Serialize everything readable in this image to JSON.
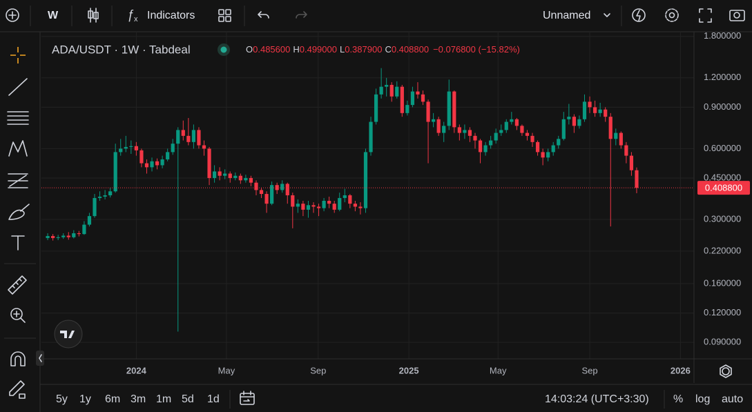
{
  "toolbar": {
    "interval": "W",
    "indicators": "Indicators",
    "layout_name": "Unnamed"
  },
  "legend": {
    "symbol": "ADA/USDT · 1W · Tabdeal",
    "items": [
      {
        "key": "O",
        "value": "0.485600"
      },
      {
        "key": "H",
        "value": "0.499000"
      },
      {
        "key": "L",
        "value": "0.387900"
      },
      {
        "key": "C",
        "value": "0.408800"
      }
    ],
    "change": "−0.076800 (−15.82%)"
  },
  "bottom_bar": {
    "ranges": [
      "5y",
      "1y",
      "6m",
      "3m",
      "1m",
      "5d",
      "1d"
    ],
    "clock": "14:03:24 (UTC+3:30)",
    "percent": "%",
    "log": "log",
    "auto": "auto"
  },
  "chart_data": {
    "type": "candlestick",
    "log_scale": true,
    "grid": true,
    "up_color": "#089981",
    "down_color": "#f23645",
    "last_price_label": "0.408800",
    "xlim": [
      -1.2,
      124
    ],
    "xticks": [
      {
        "value": 17,
        "label": "2024"
      },
      {
        "value": 34.3,
        "label": "May"
      },
      {
        "value": 51.9,
        "label": "Sep"
      },
      {
        "value": 69.3,
        "label": "2025"
      },
      {
        "value": 86.4,
        "label": "May"
      },
      {
        "value": 104,
        "label": "Sep"
      },
      {
        "value": 121.4,
        "label": "2026"
      }
    ],
    "ylim": [
      0.0766,
      1.872
    ],
    "yticks": [
      {
        "value": 1.8,
        "label": "1.800000"
      },
      {
        "value": 1.2,
        "label": "1.200000"
      },
      {
        "value": 0.9,
        "label": "0.900000"
      },
      {
        "value": 0.6,
        "label": "0.600000"
      },
      {
        "value": 0.45,
        "label": "0.450000"
      },
      {
        "value": 0.3,
        "label": "0.300000"
      },
      {
        "value": 0.22,
        "label": "0.220000"
      },
      {
        "value": 0.16,
        "label": "0.160000"
      },
      {
        "value": 0.12,
        "label": "0.120000"
      },
      {
        "value": 0.09,
        "label": "0.090000"
      }
    ],
    "open": [
      0.25,
      0.255,
      0.25,
      0.252,
      0.256,
      0.252,
      0.262,
      0.26,
      0.285,
      0.31,
      0.37,
      0.375,
      0.38,
      0.395,
      0.58,
      0.6,
      0.61,
      0.615,
      0.59,
      0.52,
      0.5,
      0.53,
      0.51,
      0.54,
      0.58,
      0.63,
      0.72,
      0.68,
      0.64,
      0.72,
      0.62,
      0.6,
      0.45,
      0.48,
      0.46,
      0.47,
      0.45,
      0.46,
      0.44,
      0.45,
      0.43,
      0.4,
      0.385,
      0.35,
      0.42,
      0.4,
      0.425,
      0.38,
      0.34,
      0.35,
      0.33,
      0.345,
      0.34,
      0.335,
      0.36,
      0.35,
      0.33,
      0.37,
      0.38,
      0.35,
      0.34,
      0.335,
      0.58,
      0.78,
      1.02,
      1.1,
      1.12,
      1.0,
      1.1,
      0.85,
      0.92,
      1.05,
      1.02,
      0.95,
      0.78,
      0.8,
      0.7,
      0.75,
      1.05,
      0.74,
      0.7,
      0.72,
      0.68,
      0.65,
      0.58,
      0.62,
      0.65,
      0.7,
      0.72,
      0.78,
      0.8,
      0.75,
      0.7,
      0.68,
      0.64,
      0.58,
      0.55,
      0.58,
      0.62,
      0.66,
      0.8,
      0.82,
      0.75,
      0.8,
      0.95,
      0.9,
      0.85,
      0.88,
      0.82,
      0.66,
      0.7,
      0.62,
      0.56,
      0.4856
    ],
    "high": [
      0.262,
      0.26,
      0.258,
      0.262,
      0.265,
      0.27,
      0.268,
      0.295,
      0.32,
      0.385,
      0.395,
      0.4,
      0.41,
      0.63,
      0.66,
      0.68,
      0.65,
      0.64,
      0.6,
      0.54,
      0.55,
      0.545,
      0.56,
      0.6,
      0.66,
      0.74,
      0.79,
      0.81,
      0.76,
      0.74,
      0.65,
      0.61,
      0.51,
      0.5,
      0.49,
      0.48,
      0.475,
      0.47,
      0.465,
      0.46,
      0.44,
      0.41,
      0.395,
      0.435,
      0.43,
      0.44,
      0.43,
      0.39,
      0.365,
      0.36,
      0.36,
      0.355,
      0.35,
      0.37,
      0.375,
      0.36,
      0.39,
      0.405,
      0.385,
      0.36,
      0.355,
      0.6,
      0.82,
      1.08,
      1.32,
      1.2,
      1.15,
      1.16,
      1.12,
      0.96,
      1.1,
      1.15,
      1.06,
      0.97,
      0.85,
      0.82,
      0.78,
      1.18,
      1.06,
      0.76,
      0.76,
      0.74,
      0.7,
      0.66,
      0.64,
      0.68,
      0.73,
      0.76,
      0.8,
      0.86,
      0.81,
      0.76,
      0.72,
      0.7,
      0.65,
      0.6,
      0.6,
      0.64,
      0.68,
      0.86,
      0.93,
      0.84,
      0.83,
      1.02,
      1.0,
      0.96,
      0.94,
      0.9,
      0.85,
      0.73,
      0.71,
      0.64,
      0.58,
      0.499
    ],
    "low": [
      0.245,
      0.244,
      0.245,
      0.248,
      0.246,
      0.249,
      0.254,
      0.258,
      0.28,
      0.305,
      0.36,
      0.365,
      0.372,
      0.39,
      0.56,
      0.58,
      0.57,
      0.56,
      0.5,
      0.47,
      0.48,
      0.49,
      0.495,
      0.53,
      0.565,
      0.1,
      0.65,
      0.62,
      0.6,
      0.6,
      0.56,
      0.42,
      0.43,
      0.44,
      0.445,
      0.43,
      0.44,
      0.425,
      0.43,
      0.415,
      0.38,
      0.37,
      0.32,
      0.345,
      0.385,
      0.39,
      0.35,
      0.275,
      0.32,
      0.31,
      0.305,
      0.32,
      0.31,
      0.325,
      0.335,
      0.32,
      0.325,
      0.355,
      0.335,
      0.325,
      0.315,
      0.32,
      0.56,
      0.76,
      0.98,
      1.0,
      0.95,
      0.98,
      0.82,
      0.83,
      0.9,
      0.98,
      0.92,
      0.52,
      0.74,
      0.68,
      0.64,
      0.72,
      0.7,
      0.65,
      0.66,
      0.64,
      0.6,
      0.52,
      0.56,
      0.6,
      0.63,
      0.68,
      0.7,
      0.76,
      0.72,
      0.68,
      0.65,
      0.61,
      0.56,
      0.51,
      0.53,
      0.56,
      0.6,
      0.65,
      0.76,
      0.7,
      0.73,
      0.78,
      0.85,
      0.82,
      0.82,
      0.78,
      0.28,
      0.62,
      0.6,
      0.52,
      0.46,
      0.3879
    ],
    "close": [
      0.255,
      0.25,
      0.252,
      0.256,
      0.252,
      0.262,
      0.26,
      0.285,
      0.31,
      0.37,
      0.375,
      0.38,
      0.395,
      0.58,
      0.6,
      0.61,
      0.615,
      0.59,
      0.52,
      0.5,
      0.53,
      0.51,
      0.54,
      0.58,
      0.63,
      0.72,
      0.68,
      0.64,
      0.72,
      0.62,
      0.6,
      0.45,
      0.48,
      0.46,
      0.47,
      0.45,
      0.46,
      0.44,
      0.45,
      0.43,
      0.4,
      0.385,
      0.35,
      0.42,
      0.4,
      0.425,
      0.38,
      0.34,
      0.35,
      0.33,
      0.345,
      0.34,
      0.335,
      0.36,
      0.35,
      0.33,
      0.37,
      0.38,
      0.35,
      0.34,
      0.335,
      0.58,
      0.78,
      1.02,
      1.1,
      1.12,
      1.0,
      1.1,
      0.85,
      0.92,
      1.05,
      1.02,
      0.95,
      0.78,
      0.8,
      0.7,
      0.75,
      1.05,
      0.74,
      0.7,
      0.72,
      0.68,
      0.65,
      0.58,
      0.62,
      0.65,
      0.7,
      0.72,
      0.78,
      0.8,
      0.75,
      0.7,
      0.68,
      0.64,
      0.58,
      0.55,
      0.58,
      0.62,
      0.66,
      0.8,
      0.82,
      0.75,
      0.8,
      0.95,
      0.9,
      0.85,
      0.88,
      0.82,
      0.66,
      0.7,
      0.62,
      0.56,
      0.4856,
      0.4088
    ]
  }
}
